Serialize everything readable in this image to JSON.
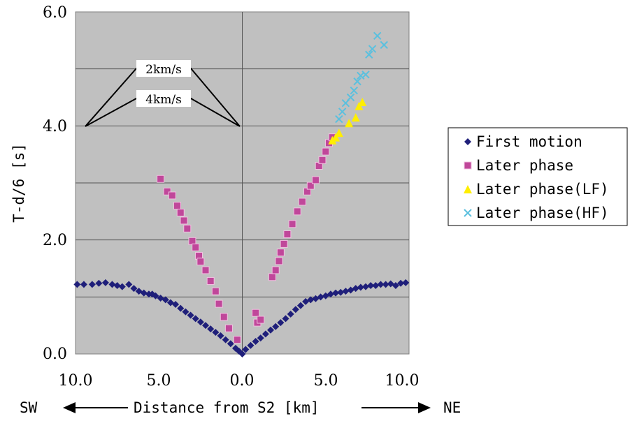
{
  "chart_data": {
    "type": "scatter",
    "title": "",
    "xlabel": "Distance from S2 [km]",
    "ylabel": "T-d/6 [s]",
    "direction_left": "SW",
    "direction_right": "NE",
    "xlim": [
      -10,
      10
    ],
    "ylim": [
      0,
      6
    ],
    "x_tick_labels": [
      "10.0",
      "5.0",
      "0.0",
      "5.0",
      "10.0"
    ],
    "y_tick_labels": [
      "0.0",
      "2.0",
      "4.0",
      "6.0"
    ],
    "grid": true,
    "legend_position": "right",
    "annotations": [
      {
        "text": "2km/s",
        "slope_km_per_s": 2
      },
      {
        "text": "4km/s",
        "slope_km_per_s": 4
      }
    ],
    "series": [
      {
        "name": "First motion",
        "marker": "diamond",
        "color": "#1f1f7a",
        "points": [
          [
            -9.9,
            1.22
          ],
          [
            -9.5,
            1.22
          ],
          [
            -9.0,
            1.22
          ],
          [
            -8.6,
            1.24
          ],
          [
            -8.2,
            1.25
          ],
          [
            -7.8,
            1.22
          ],
          [
            -7.5,
            1.2
          ],
          [
            -7.2,
            1.18
          ],
          [
            -6.8,
            1.22
          ],
          [
            -6.5,
            1.15
          ],
          [
            -6.2,
            1.1
          ],
          [
            -5.9,
            1.07
          ],
          [
            -5.6,
            1.05
          ],
          [
            -5.4,
            1.05
          ],
          [
            -5.2,
            1.02
          ],
          [
            -4.9,
            0.98
          ],
          [
            -4.6,
            0.95
          ],
          [
            -4.3,
            0.9
          ],
          [
            -4.0,
            0.87
          ],
          [
            -3.7,
            0.8
          ],
          [
            -3.4,
            0.74
          ],
          [
            -3.1,
            0.68
          ],
          [
            -2.8,
            0.62
          ],
          [
            -2.5,
            0.56
          ],
          [
            -2.2,
            0.5
          ],
          [
            -1.9,
            0.44
          ],
          [
            -1.6,
            0.38
          ],
          [
            -1.3,
            0.32
          ],
          [
            -1.0,
            0.25
          ],
          [
            -0.7,
            0.18
          ],
          [
            -0.4,
            0.1
          ],
          [
            -0.2,
            0.05
          ],
          [
            0.0,
            0.0
          ],
          [
            0.2,
            0.08
          ],
          [
            0.5,
            0.15
          ],
          [
            0.8,
            0.22
          ],
          [
            1.1,
            0.28
          ],
          [
            1.4,
            0.35
          ],
          [
            1.7,
            0.42
          ],
          [
            2.0,
            0.48
          ],
          [
            2.3,
            0.55
          ],
          [
            2.6,
            0.62
          ],
          [
            2.9,
            0.7
          ],
          [
            3.2,
            0.78
          ],
          [
            3.5,
            0.85
          ],
          [
            3.8,
            0.92
          ],
          [
            4.1,
            0.95
          ],
          [
            4.4,
            0.97
          ],
          [
            4.7,
            1.0
          ],
          [
            5.0,
            1.02
          ],
          [
            5.3,
            1.05
          ],
          [
            5.6,
            1.07
          ],
          [
            5.9,
            1.08
          ],
          [
            6.2,
            1.1
          ],
          [
            6.5,
            1.12
          ],
          [
            6.8,
            1.15
          ],
          [
            7.1,
            1.17
          ],
          [
            7.4,
            1.18
          ],
          [
            7.7,
            1.2
          ],
          [
            8.0,
            1.2
          ],
          [
            8.3,
            1.22
          ],
          [
            8.6,
            1.22
          ],
          [
            8.9,
            1.23
          ],
          [
            9.2,
            1.2
          ],
          [
            9.5,
            1.24
          ],
          [
            9.8,
            1.25
          ]
        ]
      },
      {
        "name": "Later phase",
        "marker": "square",
        "color": "#c0479a",
        "points": [
          [
            -4.9,
            3.07
          ],
          [
            -4.5,
            2.85
          ],
          [
            -4.2,
            2.78
          ],
          [
            -3.9,
            2.6
          ],
          [
            -3.7,
            2.48
          ],
          [
            -3.5,
            2.34
          ],
          [
            -3.3,
            2.2
          ],
          [
            -3.0,
            1.98
          ],
          [
            -2.8,
            1.87
          ],
          [
            -2.6,
            1.72
          ],
          [
            -2.5,
            1.62
          ],
          [
            -2.2,
            1.47
          ],
          [
            -1.9,
            1.28
          ],
          [
            -1.6,
            1.1
          ],
          [
            -1.4,
            0.88
          ],
          [
            -1.1,
            0.65
          ],
          [
            -0.8,
            0.45
          ],
          [
            -0.3,
            0.25
          ],
          [
            0.8,
            0.72
          ],
          [
            0.9,
            0.55
          ],
          [
            1.1,
            0.6
          ],
          [
            1.8,
            1.35
          ],
          [
            2.0,
            1.47
          ],
          [
            2.2,
            1.63
          ],
          [
            2.3,
            1.78
          ],
          [
            2.5,
            1.93
          ],
          [
            2.7,
            2.1
          ],
          [
            3.0,
            2.28
          ],
          [
            3.3,
            2.5
          ],
          [
            3.6,
            2.67
          ],
          [
            3.9,
            2.85
          ],
          [
            4.1,
            2.95
          ],
          [
            4.4,
            3.05
          ],
          [
            4.6,
            3.3
          ],
          [
            4.8,
            3.4
          ],
          [
            5.0,
            3.55
          ],
          [
            5.2,
            3.7
          ],
          [
            5.4,
            3.8
          ]
        ]
      },
      {
        "name": "Later phase(LF)",
        "marker": "triangle",
        "color": "#ffee00",
        "points": [
          [
            5.4,
            3.75
          ],
          [
            5.6,
            3.8
          ],
          [
            5.8,
            3.88
          ],
          [
            6.4,
            4.05
          ],
          [
            6.8,
            4.15
          ],
          [
            7.0,
            4.35
          ],
          [
            7.2,
            4.42
          ]
        ]
      },
      {
        "name": "Later phase(HF)",
        "marker": "cross",
        "color": "#5bc0de",
        "points": [
          [
            5.8,
            4.12
          ],
          [
            6.0,
            4.25
          ],
          [
            6.2,
            4.4
          ],
          [
            6.5,
            4.5
          ],
          [
            6.7,
            4.62
          ],
          [
            6.9,
            4.78
          ],
          [
            7.1,
            4.88
          ],
          [
            7.4,
            4.9
          ],
          [
            7.6,
            5.25
          ],
          [
            7.8,
            5.35
          ],
          [
            8.1,
            5.58
          ],
          [
            8.5,
            5.42
          ]
        ]
      }
    ]
  }
}
